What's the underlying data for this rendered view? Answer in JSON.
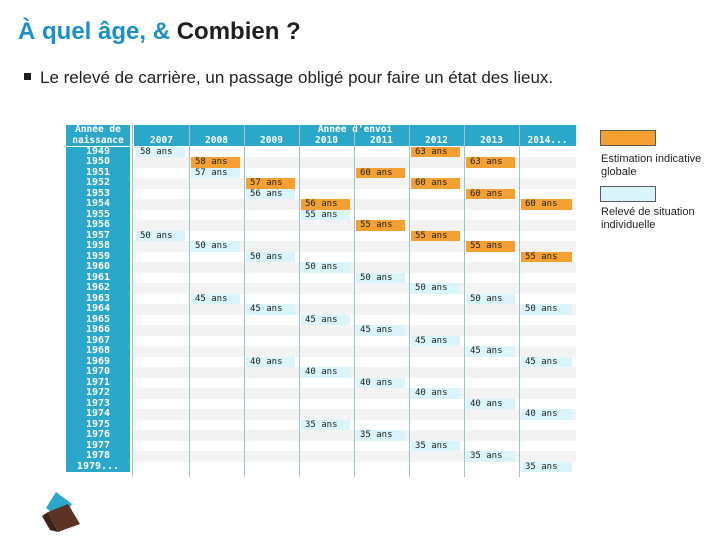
{
  "title": {
    "part1": "À quel âge, & ",
    "part2": "Combien ?"
  },
  "bullet": "Le relevé de carrière, un passage obligé pour faire un état des lieux.",
  "table": {
    "header_birth_l1": "Année de",
    "header_birth_l2": "naissance",
    "header_send": "Année d'envoi",
    "send_years": [
      "2007",
      "2008",
      "2009",
      "2010",
      "2011",
      "2012",
      "2013",
      "2014..."
    ],
    "birth_years": [
      "1949",
      "1950",
      "1951",
      "1952",
      "1953",
      "1954",
      "1955",
      "1956",
      "1957",
      "1958",
      "1959",
      "1960",
      "1961",
      "1962",
      "1963",
      "1964",
      "1965",
      "1966",
      "1967",
      "1968",
      "1969",
      "1970",
      "1971",
      "1972",
      "1973",
      "1974",
      "1975",
      "1976",
      "1977",
      "1978",
      "1979..."
    ],
    "cells": [
      {
        "row": 0,
        "col": 0,
        "text": "58 ans",
        "kind": "light"
      },
      {
        "row": 0,
        "col": 5,
        "text": "63 ans",
        "kind": "orange"
      },
      {
        "row": 1,
        "col": 1,
        "text": "58 ans",
        "kind": "orange"
      },
      {
        "row": 1,
        "col": 6,
        "text": "63 ans",
        "kind": "orange"
      },
      {
        "row": 2,
        "col": 1,
        "text": "57 ans",
        "kind": "light"
      },
      {
        "row": 2,
        "col": 4,
        "text": "60 ans",
        "kind": "orange"
      },
      {
        "row": 3,
        "col": 2,
        "text": "57 ans",
        "kind": "orange"
      },
      {
        "row": 3,
        "col": 5,
        "text": "60 ans",
        "kind": "orange"
      },
      {
        "row": 4,
        "col": 2,
        "text": "56 ans",
        "kind": "light"
      },
      {
        "row": 4,
        "col": 6,
        "text": "60 ans",
        "kind": "orange"
      },
      {
        "row": 5,
        "col": 3,
        "text": "56 ans",
        "kind": "orange"
      },
      {
        "row": 5,
        "col": 7,
        "text": "60 ans",
        "kind": "orange"
      },
      {
        "row": 6,
        "col": 3,
        "text": "55 ans",
        "kind": "light"
      },
      {
        "row": 7,
        "col": 4,
        "text": "55 ans",
        "kind": "orange"
      },
      {
        "row": 8,
        "col": 0,
        "text": "50 ans",
        "kind": "light"
      },
      {
        "row": 8,
        "col": 5,
        "text": "55 ans",
        "kind": "orange"
      },
      {
        "row": 9,
        "col": 1,
        "text": "50 ans",
        "kind": "light"
      },
      {
        "row": 9,
        "col": 6,
        "text": "55 ans",
        "kind": "orange"
      },
      {
        "row": 10,
        "col": 2,
        "text": "50 ans",
        "kind": "light"
      },
      {
        "row": 10,
        "col": 7,
        "text": "55 ans",
        "kind": "orange"
      },
      {
        "row": 11,
        "col": 3,
        "text": "50 ans",
        "kind": "light"
      },
      {
        "row": 12,
        "col": 4,
        "text": "50 ans",
        "kind": "light"
      },
      {
        "row": 13,
        "col": 5,
        "text": "50 ans",
        "kind": "light"
      },
      {
        "row": 14,
        "col": 1,
        "text": "45 ans",
        "kind": "light"
      },
      {
        "row": 14,
        "col": 6,
        "text": "50 ans",
        "kind": "light"
      },
      {
        "row": 15,
        "col": 2,
        "text": "45 ans",
        "kind": "light"
      },
      {
        "row": 15,
        "col": 7,
        "text": "50 ans",
        "kind": "light"
      },
      {
        "row": 16,
        "col": 3,
        "text": "45 ans",
        "kind": "light"
      },
      {
        "row": 17,
        "col": 4,
        "text": "45 ans",
        "kind": "light"
      },
      {
        "row": 18,
        "col": 5,
        "text": "45 ans",
        "kind": "light"
      },
      {
        "row": 19,
        "col": 6,
        "text": "45 ans",
        "kind": "light"
      },
      {
        "row": 20,
        "col": 2,
        "text": "40 ans",
        "kind": "light"
      },
      {
        "row": 20,
        "col": 7,
        "text": "45 ans",
        "kind": "light"
      },
      {
        "row": 21,
        "col": 3,
        "text": "40 ans",
        "kind": "light"
      },
      {
        "row": 22,
        "col": 4,
        "text": "40 ans",
        "kind": "light"
      },
      {
        "row": 23,
        "col": 5,
        "text": "40 ans",
        "kind": "light"
      },
      {
        "row": 24,
        "col": 6,
        "text": "40 ans",
        "kind": "light"
      },
      {
        "row": 25,
        "col": 7,
        "text": "40 ans",
        "kind": "light"
      },
      {
        "row": 26,
        "col": 3,
        "text": "35 ans",
        "kind": "light"
      },
      {
        "row": 27,
        "col": 4,
        "text": "35 ans",
        "kind": "light"
      },
      {
        "row": 28,
        "col": 5,
        "text": "35 ans",
        "kind": "light"
      },
      {
        "row": 29,
        "col": 6,
        "text": "35 ans",
        "kind": "light"
      },
      {
        "row": 30,
        "col": 7,
        "text": "35 ans",
        "kind": "light"
      }
    ]
  },
  "legend": {
    "orange_label_l1": "Estimation indicative",
    "orange_label_l2": "globale",
    "light_label_l1": "Relevé de situation",
    "light_label_l2": "individuelle"
  },
  "colors": {
    "header": "#2aa7c9",
    "orange": "#f5a033",
    "light": "#d9f4fb",
    "title_blue": "#1a8fc8"
  }
}
